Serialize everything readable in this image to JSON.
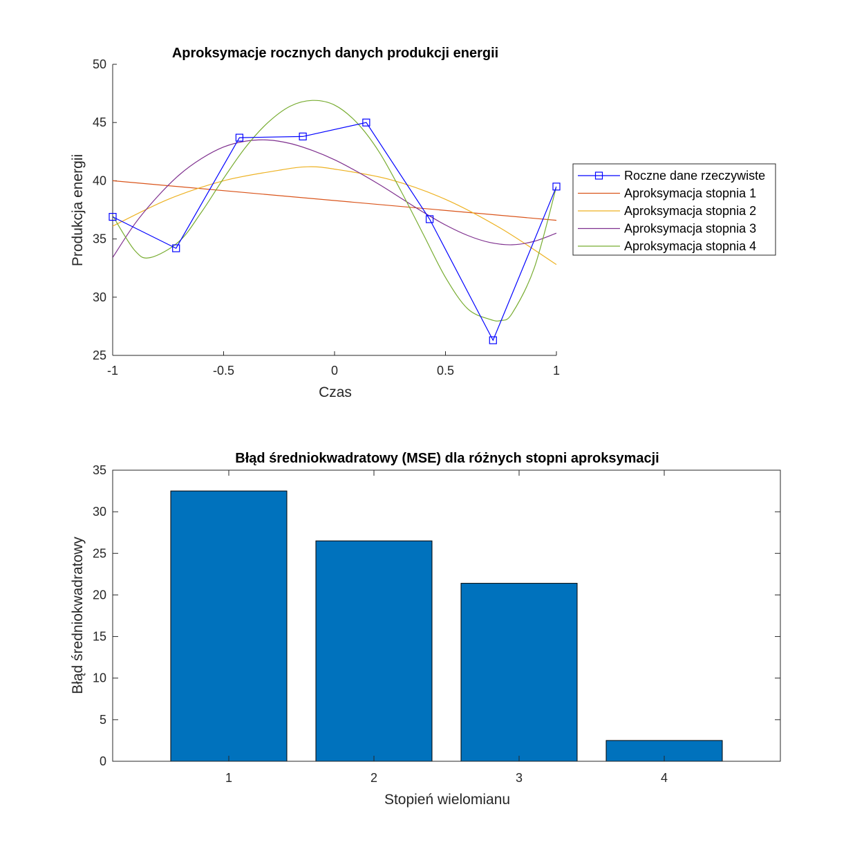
{
  "chart_data": [
    {
      "type": "line",
      "title": "Aproksymacje rocznych danych produkcji energii",
      "xlabel": "Czas",
      "ylabel": "Produkcja energii",
      "xlim": [
        -1,
        1
      ],
      "ylim": [
        25,
        50
      ],
      "xticks": [
        "-1",
        "-0.5",
        "0",
        "0.5",
        "1"
      ],
      "yticks": [
        "25",
        "30",
        "35",
        "40",
        "45",
        "50"
      ],
      "legend_position": "outside-right",
      "grid": false,
      "series": [
        {
          "name": "Roczne dane rzeczywiste",
          "color": "#0000ff",
          "marker": "square",
          "x": [
            -1,
            -0.7143,
            -0.4286,
            -0.1429,
            0.1429,
            0.4286,
            0.7143,
            1
          ],
          "y": [
            36.9,
            34.2,
            43.7,
            43.8,
            45.0,
            36.7,
            26.3,
            39.5
          ]
        },
        {
          "name": "Aproksymacja stopnia 1",
          "color": "#d95319",
          "x": [
            -1,
            1
          ],
          "y": [
            40.0,
            36.6
          ]
        },
        {
          "name": "Aproksymacja stopnia 2",
          "color": "#edb120",
          "x": [
            -1,
            -0.75,
            -0.5,
            -0.25,
            -0.12,
            0,
            0.25,
            0.5,
            0.75,
            1
          ],
          "y": [
            36.1,
            38.4,
            40.0,
            40.9,
            41.2,
            41.0,
            40.1,
            38.4,
            35.9,
            32.8
          ]
        },
        {
          "name": "Aproksymacja stopnia 3",
          "color": "#7e2f8e",
          "x": [
            -1,
            -0.9,
            -0.8,
            -0.7,
            -0.6,
            -0.5,
            -0.4,
            -0.3,
            -0.2,
            -0.1,
            0,
            0.1,
            0.2,
            0.3,
            0.4,
            0.5,
            0.6,
            0.7,
            0.8,
            0.9,
            1
          ],
          "y": [
            33.4,
            36.3,
            38.6,
            40.5,
            41.9,
            42.9,
            43.4,
            43.5,
            43.2,
            42.6,
            41.8,
            40.8,
            39.7,
            38.5,
            37.3,
            36.2,
            35.3,
            34.7,
            34.5,
            34.8,
            35.5
          ]
        },
        {
          "name": "Aproksymacja stopnia 4",
          "color": "#77ac30",
          "x": [
            -1,
            -0.9,
            -0.83,
            -0.7,
            -0.6,
            -0.5,
            -0.4,
            -0.3,
            -0.2,
            -0.1,
            0,
            0.1,
            0.2,
            0.3,
            0.4,
            0.5,
            0.6,
            0.7,
            0.75,
            0.8,
            0.9,
            1
          ],
          "y": [
            37.0,
            34.0,
            33.4,
            34.8,
            37.3,
            40.2,
            42.9,
            45.0,
            46.4,
            46.9,
            46.5,
            45.0,
            42.5,
            39.1,
            35.4,
            31.7,
            29.0,
            28.1,
            28.0,
            28.6,
            32.5,
            39.5
          ]
        }
      ]
    },
    {
      "type": "bar",
      "title": "Błąd średniokwadratowy (MSE) dla różnych stopni aproksymacji",
      "xlabel": "Stopień wielomianu",
      "ylabel": "Błąd średniokwadratowy",
      "categories": [
        "1",
        "2",
        "3",
        "4"
      ],
      "values": [
        32.5,
        26.5,
        21.4,
        2.5
      ],
      "xlim": [
        0.2,
        4.8
      ],
      "ylim": [
        0,
        35
      ],
      "yticks": [
        "0",
        "5",
        "10",
        "15",
        "20",
        "25",
        "30",
        "35"
      ],
      "bar_color": "#0072bd",
      "grid": false
    }
  ]
}
